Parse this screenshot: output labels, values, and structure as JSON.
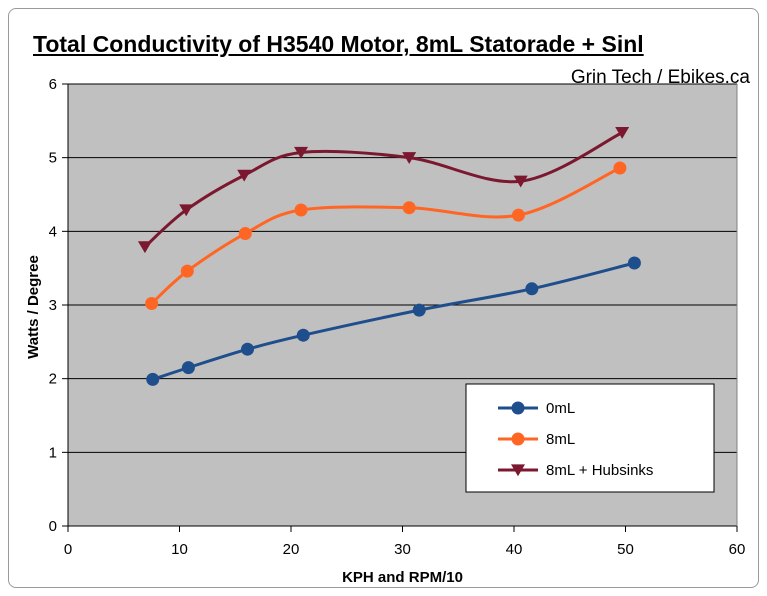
{
  "chart_data": {
    "type": "line",
    "title": "Total Conductivity of H3540 Motor, 8mL Statorade + Sinl",
    "subtitle": "Grin Tech / Ebikes.ca",
    "xlabel": "KPH and RPM/10",
    "ylabel": "Watts / Degree",
    "xlim": [
      0,
      60
    ],
    "ylim": [
      0,
      6
    ],
    "xticks": [
      0,
      10,
      20,
      30,
      40,
      50,
      60
    ],
    "yticks": [
      0,
      1,
      2,
      3,
      4,
      5,
      6
    ],
    "grid": "horizontal",
    "legend_position": "bottom-right",
    "background": "#c0c0c0",
    "series": [
      {
        "name": "0mL",
        "color": "#1f4e8c",
        "marker": "circle",
        "x": [
          7.6,
          10.8,
          16.1,
          21.1,
          31.5,
          41.6,
          50.8
        ],
        "y": [
          1.99,
          2.15,
          2.4,
          2.59,
          2.93,
          3.22,
          3.57
        ]
      },
      {
        "name": "8mL",
        "color": "#ff6624",
        "marker": "circle",
        "x": [
          7.5,
          10.7,
          15.9,
          20.9,
          30.6,
          40.4,
          49.5
        ],
        "y": [
          3.02,
          3.46,
          3.97,
          4.29,
          4.32,
          4.22,
          4.86
        ]
      },
      {
        "name": "8mL + Hubsinks",
        "color": "#7b1830",
        "marker": "triangle-down",
        "x": [
          6.9,
          10.6,
          15.8,
          20.9,
          30.6,
          40.6,
          49.7
        ],
        "y": [
          3.79,
          4.29,
          4.76,
          5.07,
          5.0,
          4.68,
          5.34
        ]
      }
    ]
  }
}
